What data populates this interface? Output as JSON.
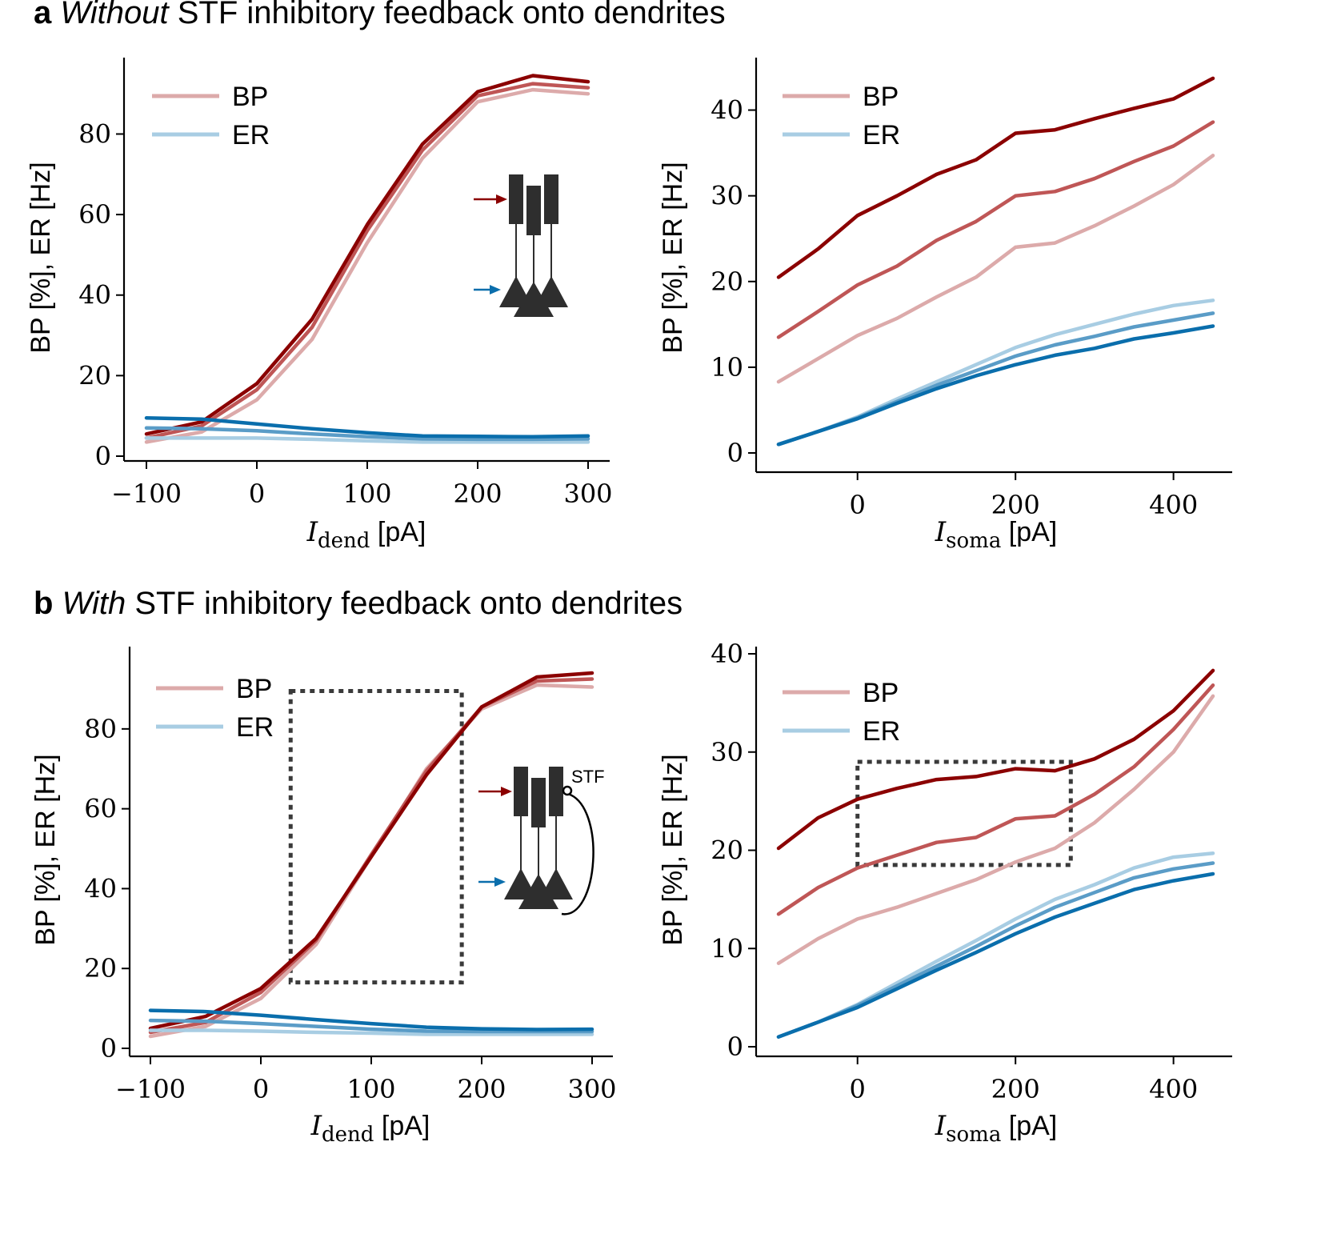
{
  "figure": {
    "panel_a": {
      "letter": "a",
      "title_emph": "Without",
      "title_rest": " STF inhibitory feedback onto dendrites"
    },
    "panel_b": {
      "letter": "b",
      "title_emph": "With",
      "title_rest": " STF inhibitory feedback onto dendrites"
    },
    "inset_stf_label": "STF"
  },
  "colors": {
    "bp": [
      "#dcaaaa",
      "#bf5656",
      "#8b0000"
    ],
    "er": [
      "#a8cde3",
      "#5a9cc7",
      "#0a6eac"
    ],
    "legend_bp": "#dcaaaa",
    "legend_er": "#a8cde3",
    "dotted_box": "#3a3a3a",
    "inset": "#2e2e2e",
    "arrow_bp": "#8b0000",
    "arrow_er": "#0a6eac"
  },
  "chart_data": [
    {
      "id": "a-left",
      "type": "line",
      "xlabel_sub": "dend",
      "xlabel_unit": " [pA]",
      "ylabel": "BP [%], ER [Hz]",
      "xlim": [
        -100,
        300
      ],
      "ylim": [
        0,
        95
      ],
      "xticks": [
        -100,
        0,
        100,
        200,
        300
      ],
      "yticks": [
        0,
        20,
        40,
        60,
        80
      ],
      "legend": [
        "BP",
        "ER"
      ],
      "legend_position": "top-left",
      "inset": "no-stf",
      "x": [
        -100,
        -50,
        0,
        50,
        100,
        150,
        200,
        250,
        300
      ],
      "series": [
        {
          "group": "BP",
          "shade": 0,
          "values": [
            3.5,
            6,
            14,
            29,
            53,
            74,
            88,
            91,
            90
          ]
        },
        {
          "group": "BP",
          "shade": 1,
          "values": [
            4.5,
            7.5,
            16.5,
            32,
            56,
            76,
            89.5,
            92.5,
            91.5
          ]
        },
        {
          "group": "BP",
          "shade": 2,
          "values": [
            5.5,
            8.5,
            18,
            34,
            57.5,
            77.5,
            90.5,
            94.5,
            93
          ]
        },
        {
          "group": "ER",
          "shade": 0,
          "values": [
            4.5,
            4.5,
            4.5,
            4.2,
            3.8,
            3.5,
            3.5,
            3.5,
            3.5
          ]
        },
        {
          "group": "ER",
          "shade": 1,
          "values": [
            7,
            6.8,
            6.3,
            5.5,
            4.8,
            4.3,
            4.2,
            4.2,
            4.3
          ]
        },
        {
          "group": "ER",
          "shade": 2,
          "values": [
            9.5,
            9.2,
            8,
            6.8,
            5.8,
            5,
            4.9,
            4.8,
            5
          ]
        }
      ]
    },
    {
      "id": "a-right",
      "type": "line",
      "xlabel_sub": "soma",
      "xlabel_unit": " [pA]",
      "ylabel": "BP [%], ER [Hz]",
      "xlim": [
        -100,
        450
      ],
      "ylim": [
        0,
        45
      ],
      "xticks": [
        0,
        200,
        400
      ],
      "yticks": [
        0,
        10,
        20,
        30,
        40
      ],
      "legend": [
        "BP",
        "ER"
      ],
      "legend_position": "top-left",
      "x": [
        -100,
        -50,
        0,
        50,
        100,
        150,
        200,
        250,
        300,
        350,
        400,
        450
      ],
      "series": [
        {
          "group": "BP",
          "shade": 0,
          "values": [
            8.3,
            11,
            13.7,
            15.7,
            18.2,
            20.5,
            24,
            24.5,
            26.5,
            28.8,
            31.3,
            34.7
          ]
        },
        {
          "group": "BP",
          "shade": 1,
          "values": [
            13.5,
            16.5,
            19.6,
            21.8,
            24.8,
            27,
            30,
            30.5,
            32,
            34,
            35.8,
            38.6
          ]
        },
        {
          "group": "BP",
          "shade": 2,
          "values": [
            20.5,
            23.8,
            27.7,
            30,
            32.5,
            34.2,
            37.3,
            37.7,
            39,
            40.2,
            41.3,
            43.7
          ]
        },
        {
          "group": "ER",
          "shade": 0,
          "values": [
            1,
            2.5,
            4.2,
            6.3,
            8.3,
            10.3,
            12.3,
            13.8,
            15,
            16.2,
            17.2,
            17.8
          ]
        },
        {
          "group": "ER",
          "shade": 1,
          "values": [
            1,
            2.5,
            4.1,
            6,
            7.9,
            9.6,
            11.3,
            12.6,
            13.6,
            14.7,
            15.5,
            16.3
          ]
        },
        {
          "group": "ER",
          "shade": 2,
          "values": [
            1,
            2.5,
            4,
            5.8,
            7.5,
            9,
            10.3,
            11.4,
            12.2,
            13.3,
            14,
            14.8
          ]
        }
      ]
    },
    {
      "id": "b-left",
      "type": "line",
      "xlabel_sub": "dend",
      "xlabel_unit": " [pA]",
      "ylabel": "BP [%], ER [Hz]",
      "xlim": [
        -100,
        300
      ],
      "ylim": [
        0,
        95
      ],
      "xticks": [
        -100,
        0,
        100,
        200,
        300
      ],
      "yticks": [
        0,
        20,
        40,
        60,
        80
      ],
      "legend": [
        "BP",
        "ER"
      ],
      "legend_position": "top-left",
      "inset": "stf",
      "dotted_box": {
        "x": [
          27,
          182
        ],
        "y": [
          16.5,
          89.5
        ]
      },
      "x": [
        -100,
        -50,
        0,
        50,
        100,
        150,
        200,
        250,
        300
      ],
      "series": [
        {
          "group": "BP",
          "shade": 0,
          "values": [
            3,
            5.5,
            12.5,
            26,
            48,
            70,
            85,
            91,
            90.5
          ]
        },
        {
          "group": "BP",
          "shade": 1,
          "values": [
            4,
            6.5,
            14,
            27,
            48.5,
            69.5,
            85.5,
            92,
            92.5
          ]
        },
        {
          "group": "BP",
          "shade": 2,
          "values": [
            5,
            8,
            15,
            27.5,
            48,
            68.5,
            85.5,
            93,
            94
          ]
        },
        {
          "group": "ER",
          "shade": 0,
          "values": [
            4.5,
            4.5,
            4.3,
            4,
            3.8,
            3.5,
            3.5,
            3.5,
            3.5
          ]
        },
        {
          "group": "ER",
          "shade": 1,
          "values": [
            7,
            6.8,
            6.2,
            5.5,
            4.8,
            4.3,
            4.2,
            4.2,
            4.2
          ]
        },
        {
          "group": "ER",
          "shade": 2,
          "values": [
            9.5,
            9.2,
            8.3,
            7.2,
            6.2,
            5.3,
            4.9,
            4.7,
            4.8
          ]
        }
      ]
    },
    {
      "id": "b-right",
      "type": "line",
      "xlabel_sub": "soma",
      "xlabel_unit": " [pA]",
      "ylabel": "BP [%], ER [Hz]",
      "xlim": [
        -100,
        450
      ],
      "ylim": [
        0,
        40
      ],
      "xticks": [
        0,
        200,
        400
      ],
      "yticks": [
        0,
        10,
        20,
        30,
        40
      ],
      "legend": [
        "BP",
        "ER"
      ],
      "legend_position": "top-left",
      "dotted_box": {
        "x": [
          0,
          270
        ],
        "y": [
          18.5,
          29
        ]
      },
      "x": [
        -100,
        -50,
        0,
        50,
        100,
        150,
        200,
        250,
        300,
        350,
        400,
        450
      ],
      "series": [
        {
          "group": "BP",
          "shade": 0,
          "values": [
            8.5,
            11,
            13,
            14.2,
            15.6,
            17,
            18.8,
            20.2,
            22.8,
            26.2,
            30,
            35.7
          ]
        },
        {
          "group": "BP",
          "shade": 1,
          "values": [
            13.5,
            16.2,
            18.2,
            19.5,
            20.8,
            21.3,
            23.2,
            23.5,
            25.7,
            28.5,
            32.3,
            36.8
          ]
        },
        {
          "group": "BP",
          "shade": 2,
          "values": [
            20.2,
            23.3,
            25.2,
            26.3,
            27.2,
            27.5,
            28.3,
            28.1,
            29.3,
            31.3,
            34.2,
            38.3
          ]
        },
        {
          "group": "ER",
          "shade": 0,
          "values": [
            1,
            2.5,
            4.3,
            6.5,
            8.7,
            10.8,
            13,
            15,
            16.5,
            18.2,
            19.3,
            19.7
          ]
        },
        {
          "group": "ER",
          "shade": 1,
          "values": [
            1,
            2.5,
            4.2,
            6.2,
            8.2,
            10.2,
            12.3,
            14.2,
            15.7,
            17.2,
            18.1,
            18.7
          ]
        },
        {
          "group": "ER",
          "shade": 2,
          "values": [
            1,
            2.5,
            4,
            5.9,
            7.8,
            9.6,
            11.5,
            13.2,
            14.6,
            16,
            16.9,
            17.6
          ]
        }
      ]
    }
  ]
}
